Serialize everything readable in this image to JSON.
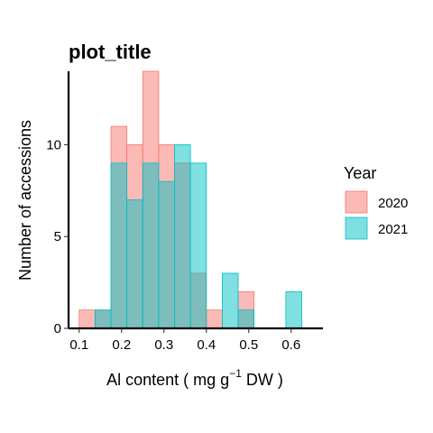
{
  "chart_data": {
    "type": "histogram",
    "title": "plot_title",
    "xlabel": {
      "main": "Al content ( mg g",
      "sup": "−1",
      "tail": " DW )"
    },
    "ylabel": "Number of accessions",
    "xlim": [
      0.075,
      0.675
    ],
    "ylim": [
      0,
      14
    ],
    "xticks": [
      0.1,
      0.2,
      0.3,
      0.4,
      0.5,
      0.6
    ],
    "xtick_labels": [
      "0.1",
      "0.2",
      "0.3",
      "0.4",
      "0.5",
      "0.6"
    ],
    "yticks": [
      0,
      5,
      10
    ],
    "ytick_labels": [
      "0",
      "5",
      "10"
    ],
    "grid": false,
    "legend": {
      "title": "Year",
      "position": "right",
      "entries": [
        {
          "label": "2020",
          "fill": "#F8766D",
          "stroke": "#F8766D"
        },
        {
          "label": "2021",
          "fill": "#00BFC4",
          "stroke": "#00BFC4"
        }
      ]
    },
    "bin_edges": [
      0.1,
      0.1375,
      0.175,
      0.2125,
      0.25,
      0.2875,
      0.325,
      0.3625,
      0.4,
      0.4375,
      0.475,
      0.5125,
      0.55,
      0.5875,
      0.625,
      0.6625
    ],
    "series": [
      {
        "name": "2020",
        "color": "#F8766D",
        "values": [
          1,
          1,
          11,
          10,
          14,
          10,
          9,
          3,
          1,
          0,
          2,
          0,
          0,
          0,
          0
        ]
      },
      {
        "name": "2021",
        "color": "#00BFC4",
        "values": [
          0,
          1,
          9,
          7,
          9,
          8,
          10,
          9,
          0,
          3,
          1,
          0,
          0,
          2,
          0
        ]
      }
    ]
  }
}
